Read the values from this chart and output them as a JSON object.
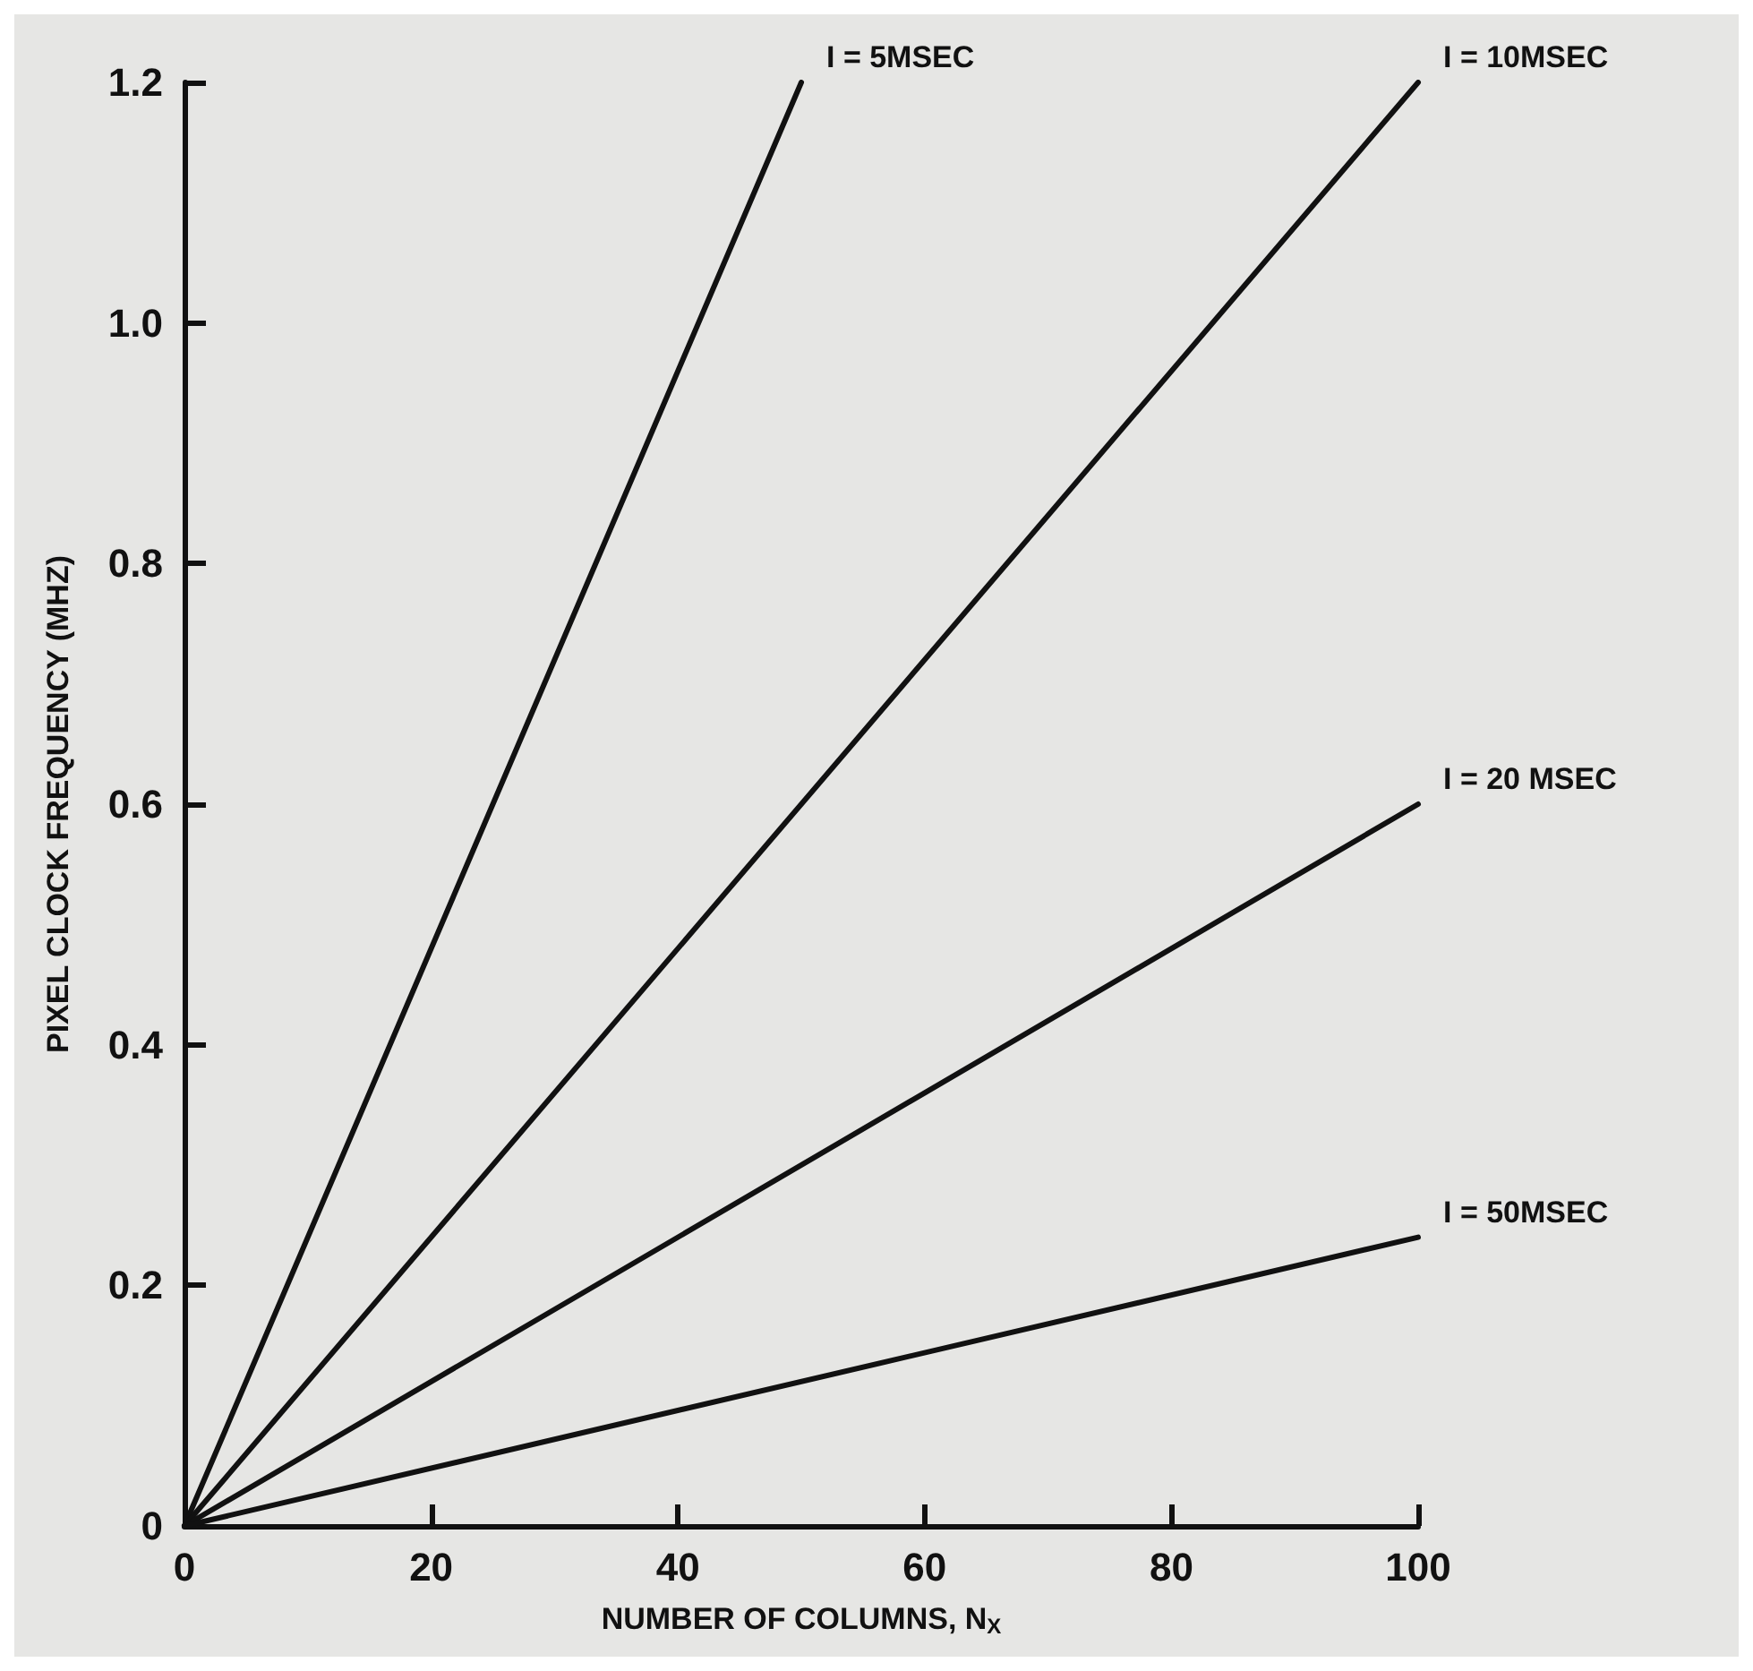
{
  "chart_data": {
    "type": "line",
    "xlabel": "NUMBER OF COLUMNS, N$_{X}$",
    "ylabel": "PIXEL CLOCK FREQUENCY (MHZ)",
    "series": [
      {
        "name": "I = 5MSEC",
        "color": "#111111",
        "x": [
          0,
          50
        ],
        "values": [
          0,
          1.2
        ]
      },
      {
        "name": "I = 10MSEC",
        "color": "#111111",
        "x": [
          0,
          100
        ],
        "values": [
          0,
          1.2
        ]
      },
      {
        "name": "I = 20 MSEC",
        "color": "#111111",
        "x": [
          0,
          100
        ],
        "values": [
          0,
          0.6
        ]
      },
      {
        "name": "I = 50MSEC",
        "color": "#111111",
        "x": [
          0,
          100
        ],
        "values": [
          0,
          0.24
        ]
      }
    ],
    "xlim": [
      0,
      100
    ],
    "xticks": [
      0,
      20,
      40,
      60,
      80,
      100
    ],
    "ylim": [
      0,
      1.2
    ],
    "yticks": [
      0,
      0.2,
      0.4,
      0.6,
      0.8,
      {
        "value": 1,
        "label": "1.0"
      },
      1.2
    ],
    "grid": false,
    "legend": false,
    "marker": "none",
    "line_style": "solid"
  }
}
